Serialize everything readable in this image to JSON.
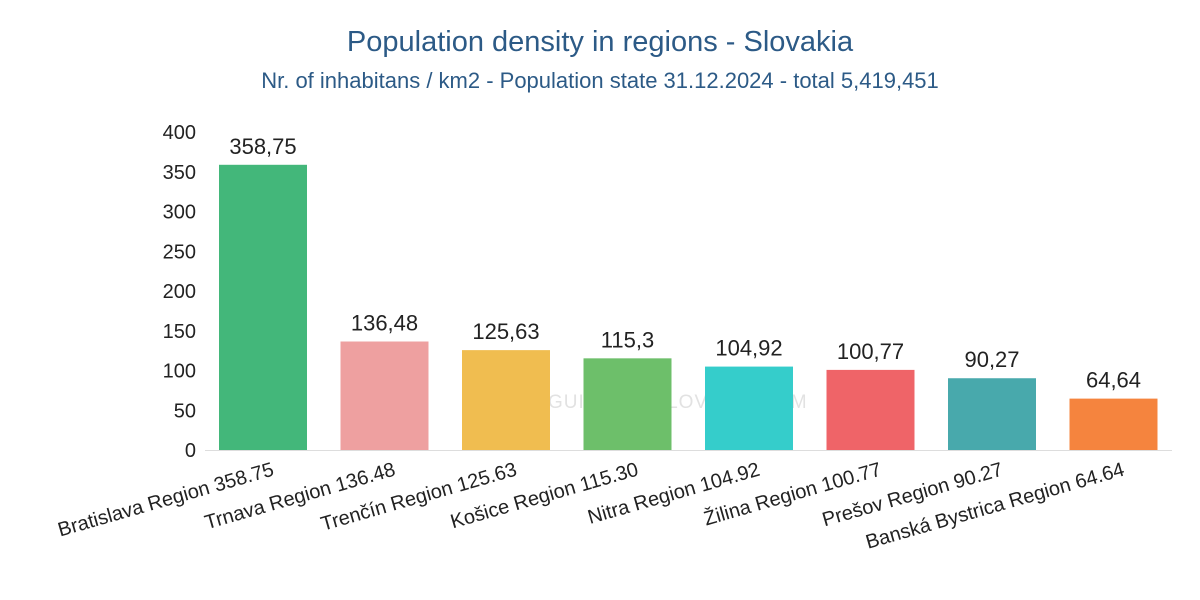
{
  "chart_data": {
    "type": "bar",
    "title": "Population density in regions - Slovakia",
    "subtitle": "Nr. of inhabitans / km2 - Population state 31.12.2024 - total 5,419,451",
    "categories": [
      "Bratislava Region  358.75",
      "Trnava Region  136.48",
      "Trenčín Region  125.63",
      "Košice Region  115.30",
      "Nitra Region  104.92",
      "Žilina Region  100.77",
      "Prešov Region  90.27",
      "Banská Bystrica Region  64.64"
    ],
    "values": [
      358.75,
      136.48,
      125.63,
      115.3,
      104.92,
      100.77,
      90.27,
      64.64
    ],
    "value_labels": [
      "358,75",
      "136,48",
      "125,63",
      "115,3",
      "104,92",
      "100,77",
      "90,27",
      "64,64"
    ],
    "colors": [
      "#43b77a",
      "#eea0a0",
      "#f0bd50",
      "#6dbf6a",
      "#35cdcb",
      "#ef6468",
      "#48a9ac",
      "#f5843e"
    ],
    "ylim": [
      0,
      400
    ],
    "yticks": [
      0,
      50,
      100,
      150,
      200,
      250,
      300,
      350,
      400
    ],
    "xlabel": "",
    "ylabel": "",
    "grid": false,
    "legend": "none"
  },
  "watermark": {
    "text": "GUIDE TO SLOVAKIA.COM"
  }
}
